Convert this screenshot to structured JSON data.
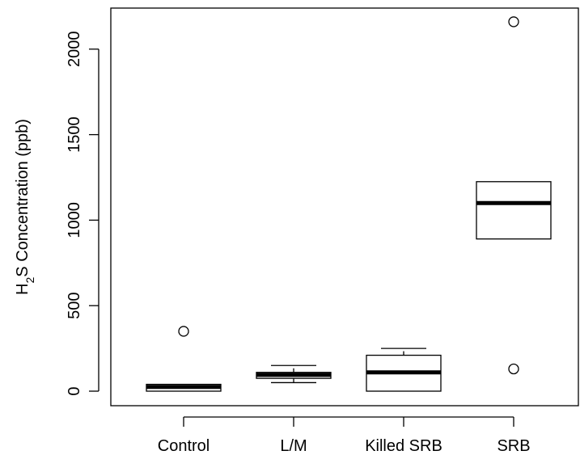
{
  "chart_data": {
    "type": "boxplot",
    "title": "",
    "xlabel": "",
    "ylabel": {
      "prefix": "H",
      "subscript": "2",
      "suffix": "S Concentration (ppb)"
    },
    "ylim": [
      -85,
      2240
    ],
    "yticks": [
      0,
      500,
      1000,
      1500,
      2000
    ],
    "grid": false,
    "categories": [
      "Control",
      "L/M",
      "Killed SRB",
      "SRB"
    ],
    "boxes": [
      {
        "name": "Control",
        "whisker_low": 0,
        "q1": 0,
        "median": 25,
        "q3": 40,
        "whisker_high": 40,
        "outliers": [
          350
        ]
      },
      {
        "name": "L/M",
        "whisker_low": 50,
        "q1": 75,
        "median": 95,
        "q3": 110,
        "whisker_high": 150,
        "outliers": []
      },
      {
        "name": "Killed SRB",
        "whisker_low": 0,
        "q1": 0,
        "median": 110,
        "q3": 210,
        "whisker_high": 250,
        "outliers": []
      },
      {
        "name": "SRB",
        "whisker_low": 890,
        "q1": 890,
        "median": 1100,
        "q3": 1225,
        "whisker_high": 1225,
        "outliers": [
          2160,
          130
        ]
      }
    ]
  }
}
